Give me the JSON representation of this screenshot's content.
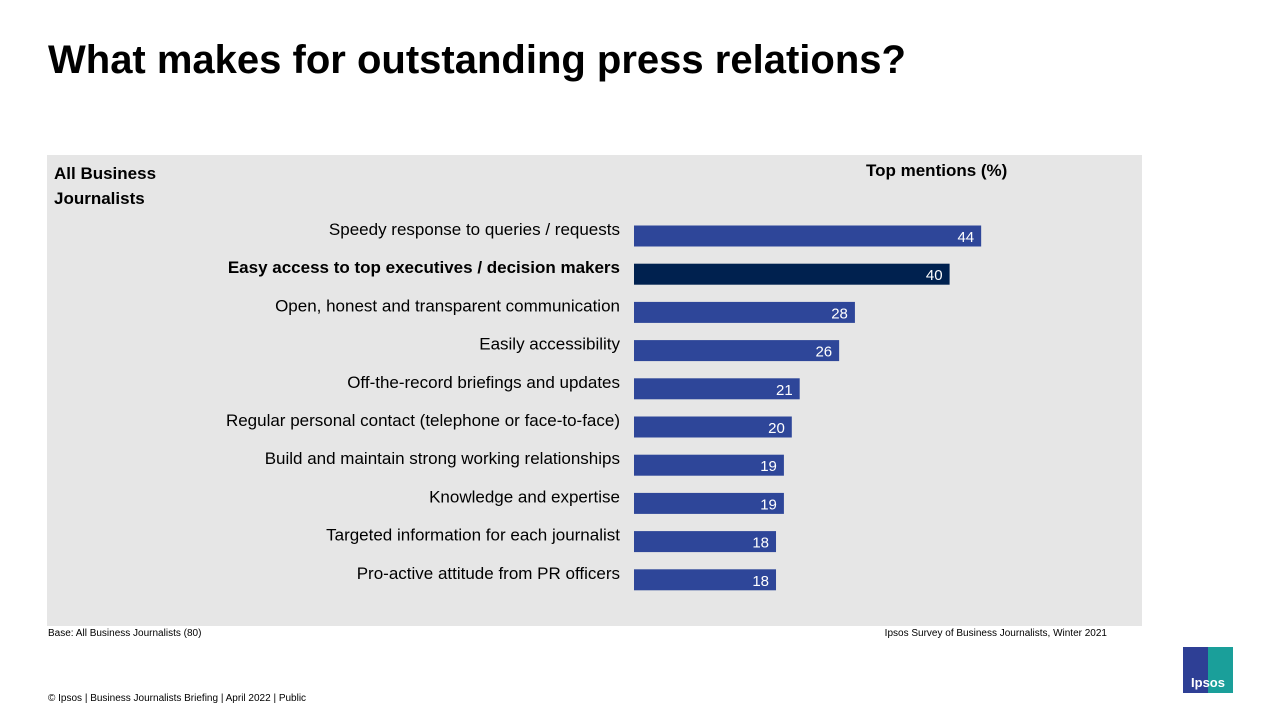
{
  "title": "What makes for outstanding press relations?",
  "colors": {
    "bar": "#2E4699",
    "highlight": "#00214F",
    "panel": "#E6E6E6"
  },
  "chart_data": {
    "type": "bar",
    "orientation": "horizontal",
    "segment_label": "All Business Journalists",
    "value_label": "Top mentions (%)",
    "categories": [
      "Speedy response to queries / requests",
      "Easy access to top executives / decision makers",
      "Open, honest and transparent communication",
      "Easily accessibility",
      "Off-the-record briefings and updates",
      "Regular personal contact (telephone or face-to-face)",
      "Build  and maintain strong working relationships",
      "Knowledge and expertise",
      "Targeted information for each journalist",
      "Pro-active attitude from PR officers"
    ],
    "values": [
      44,
      40,
      28,
      26,
      21,
      20,
      19,
      19,
      18,
      18
    ],
    "highlighted": [
      1
    ],
    "xlim": [
      0,
      100
    ],
    "grid": false
  },
  "footer": {
    "base": "Base: All Business Journalists (80)",
    "source": "Ipsos Survey of Business Journalists, Winter 2021",
    "copyright": "© Ipsos | Business Journalists Briefing | April 2022 | Public"
  },
  "logo": {
    "text": "Ipsos"
  }
}
